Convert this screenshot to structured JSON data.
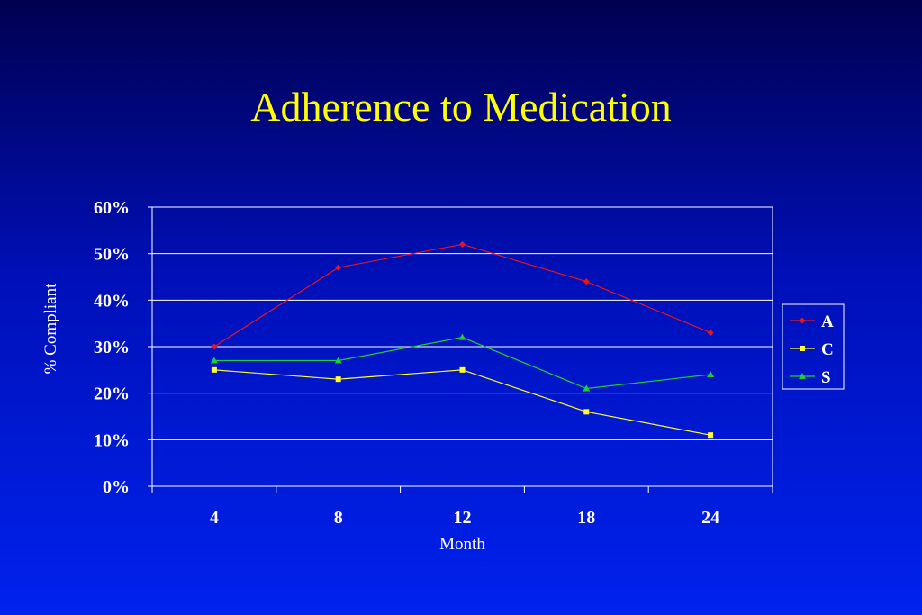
{
  "slide": {
    "title": "Adherence to Medication"
  },
  "chart_data": {
    "type": "line",
    "title": "Adherence to Medication",
    "xlabel": "Month",
    "ylabel": "% Compliant",
    "categories": [
      "4",
      "8",
      "12",
      "18",
      "24"
    ],
    "ylim": [
      0,
      0.6
    ],
    "yticks": [
      "0%",
      "10%",
      "20%",
      "30%",
      "40%",
      "50%",
      "60%"
    ],
    "grid": true,
    "legend_position": "right",
    "series": [
      {
        "name": "A",
        "values": [
          0.3,
          0.47,
          0.52,
          0.44,
          0.33
        ],
        "color": "#e8141e",
        "marker": "diamond"
      },
      {
        "name": "C",
        "values": [
          0.25,
          0.23,
          0.25,
          0.16,
          0.11
        ],
        "color": "#ffff33",
        "marker": "square"
      },
      {
        "name": "S",
        "values": [
          0.27,
          0.27,
          0.32,
          0.21,
          0.24
        ],
        "color": "#22cc33",
        "marker": "triangle"
      }
    ]
  }
}
